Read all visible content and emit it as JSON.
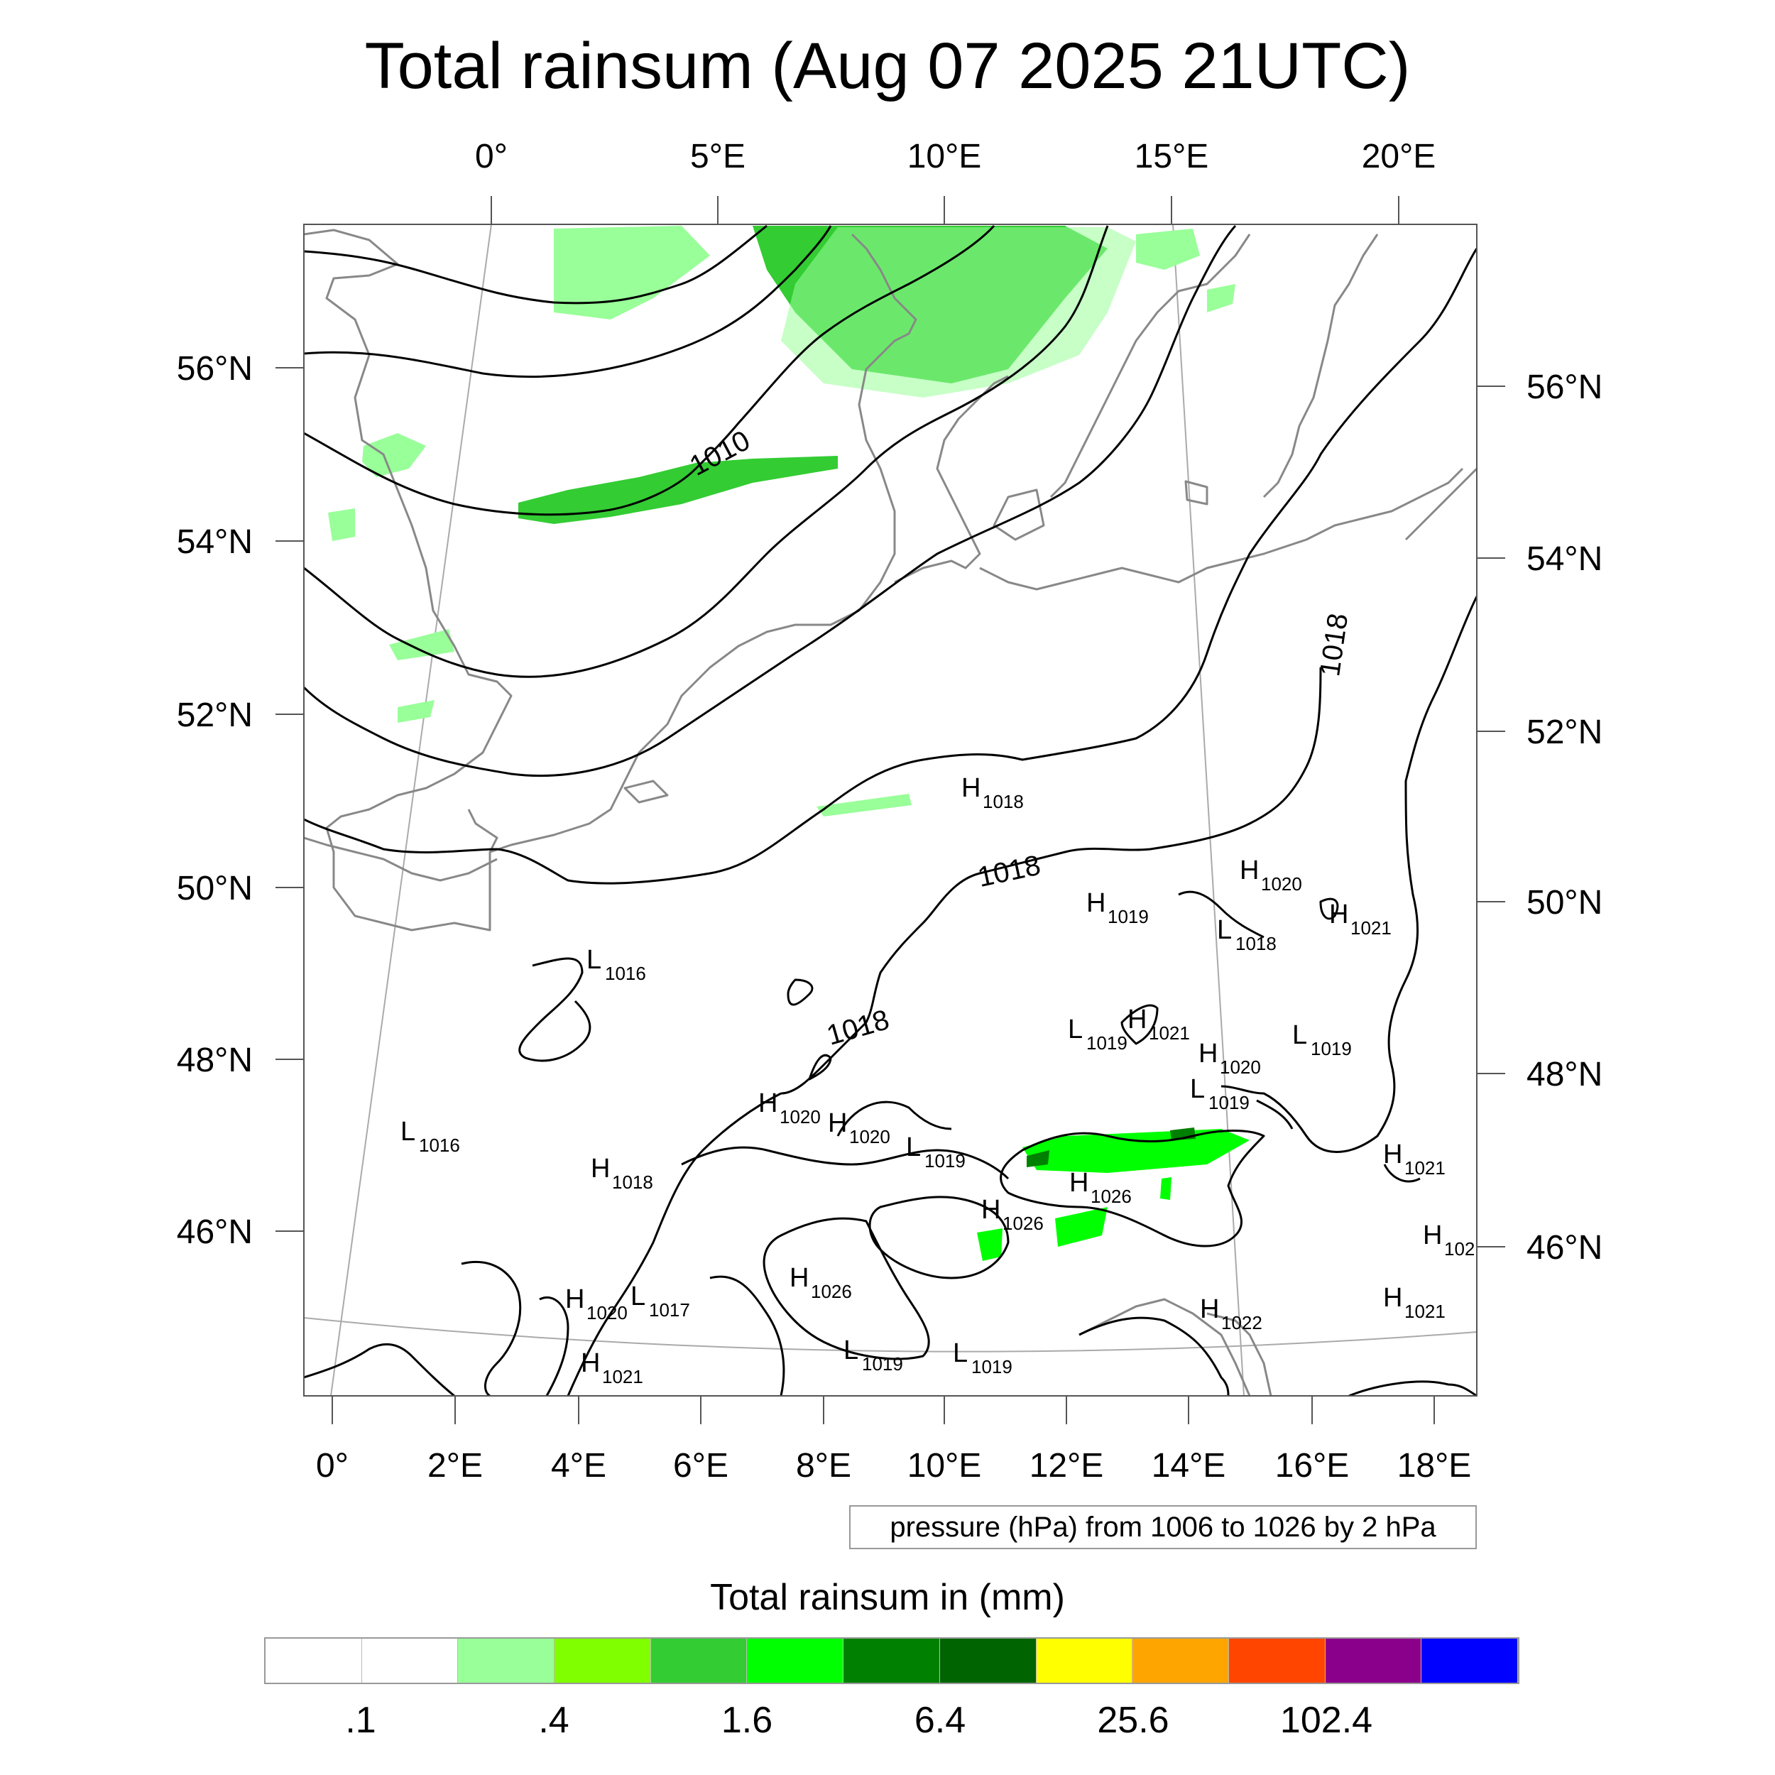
{
  "title": "Total rainsum (Aug 07 2025 21UTC)",
  "map": {
    "top_lon_labels": [
      "0°",
      "5°E",
      "10°E",
      "15°E",
      "20°E"
    ],
    "bottom_lon_labels": [
      "0°",
      "2°E",
      "4°E",
      "6°E",
      "8°E",
      "10°E",
      "12°E",
      "14°E",
      "16°E",
      "18°E"
    ],
    "left_lat_labels": [
      "56°N",
      "54°N",
      "52°N",
      "50°N",
      "48°N",
      "46°N"
    ],
    "right_lat_labels": [
      "56°N",
      "54°N",
      "52°N",
      "50°N",
      "48°N",
      "46°N"
    ],
    "isobar_labels": [
      "1010",
      "1018",
      "1018",
      "1018"
    ],
    "pressure_centers": [
      {
        "type": "H",
        "value": "1018"
      },
      {
        "type": "H",
        "value": "1020"
      },
      {
        "type": "H",
        "value": "1019"
      },
      {
        "type": "L",
        "value": "1018"
      },
      {
        "type": "H",
        "value": "1021"
      },
      {
        "type": "L",
        "value": "1016"
      },
      {
        "type": "L",
        "value": "1019"
      },
      {
        "type": "H",
        "value": "1021"
      },
      {
        "type": "H",
        "value": "1020"
      },
      {
        "type": "L",
        "value": "1019"
      },
      {
        "type": "L",
        "value": "1019"
      },
      {
        "type": "L",
        "value": "1016"
      },
      {
        "type": "H",
        "value": "1020"
      },
      {
        "type": "H",
        "value": "1020"
      },
      {
        "type": "H",
        "value": "1018"
      },
      {
        "type": "L",
        "value": "1019"
      },
      {
        "type": "H",
        "value": "1026"
      },
      {
        "type": "H",
        "value": "1026"
      },
      {
        "type": "H",
        "value": "1021"
      },
      {
        "type": "H",
        "value": "1026"
      },
      {
        "type": "H",
        "value": "102"
      },
      {
        "type": "H",
        "value": "1020"
      },
      {
        "type": "L",
        "value": "1017"
      },
      {
        "type": "H",
        "value": "1021"
      },
      {
        "type": "H",
        "value": "1022"
      },
      {
        "type": "H",
        "value": "1021"
      },
      {
        "type": "L",
        "value": "1019"
      },
      {
        "type": "L",
        "value": "1019"
      }
    ],
    "contour_info": "pressure (hPa) from 1006 to 1026 by 2 hPa",
    "colors": {
      "coastline": "#888888",
      "isobar": "#000000",
      "graticule": "#aaaaaa",
      "rain_light": "#99ff99",
      "rain_mid": "#33cc33",
      "rain_bright": "#00ff00",
      "rain_dark": "#008000"
    }
  },
  "colorbar": {
    "title": "Total rainsum in (mm)",
    "colors": [
      "#ffffff",
      "#ffffff",
      "#99ff99",
      "#80ff00",
      "#33cc33",
      "#00ff00",
      "#008000",
      "#006400",
      "#ffff00",
      "#ffa500",
      "#ff4500",
      "#8b008b",
      "#0000ff"
    ],
    "labels": [
      ".1",
      ".4",
      "1.6",
      "6.4",
      "25.6",
      "102.4"
    ]
  }
}
